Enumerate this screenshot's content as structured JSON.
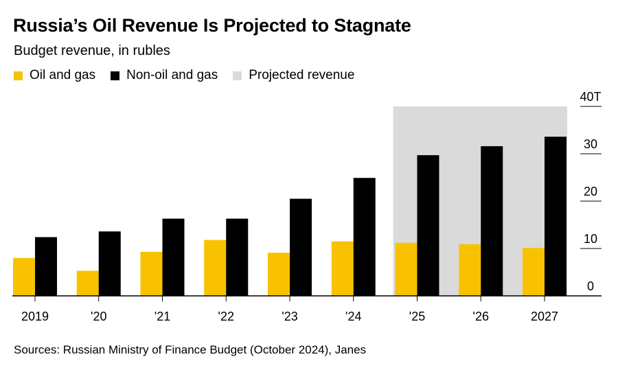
{
  "title": "Russia’s Oil Revenue Is Projected to Stagnate",
  "subtitle": "Budget revenue, in rubles",
  "legend": [
    {
      "label": "Oil and gas",
      "color": "#f8c200"
    },
    {
      "label": "Non-oil and gas",
      "color": "#000000"
    },
    {
      "label": "Projected revenue",
      "color": "#dadada"
    }
  ],
  "source": "Sources: Russian Ministry of Finance Budget (October 2024), Janes",
  "chart_data": {
    "type": "bar",
    "categories": [
      "2019",
      "'20",
      "'21",
      "'22",
      "'23",
      "'24",
      "'25",
      "'26",
      "2027"
    ],
    "series": [
      {
        "name": "Oil and gas",
        "color": "#f8c200",
        "values": [
          8.0,
          5.3,
          9.3,
          11.8,
          9.1,
          11.5,
          11.2,
          10.9,
          10.1
        ]
      },
      {
        "name": "Non-oil and gas",
        "color": "#000000",
        "values": [
          12.4,
          13.6,
          16.3,
          16.3,
          20.5,
          24.9,
          29.7,
          31.6,
          33.6
        ]
      }
    ],
    "projected_categories": [
      "'25",
      "'26",
      "2027"
    ],
    "projected_label": "Projected revenue",
    "projected_color": "#dadada",
    "ylim": [
      0,
      40
    ],
    "yticks": [
      {
        "value": 0,
        "label": "0"
      },
      {
        "value": 10,
        "label": "10"
      },
      {
        "value": 20,
        "label": "20"
      },
      {
        "value": 30,
        "label": "30"
      },
      {
        "value": 40,
        "label": "40T"
      }
    ],
    "xlabel": "",
    "ylabel": ""
  }
}
